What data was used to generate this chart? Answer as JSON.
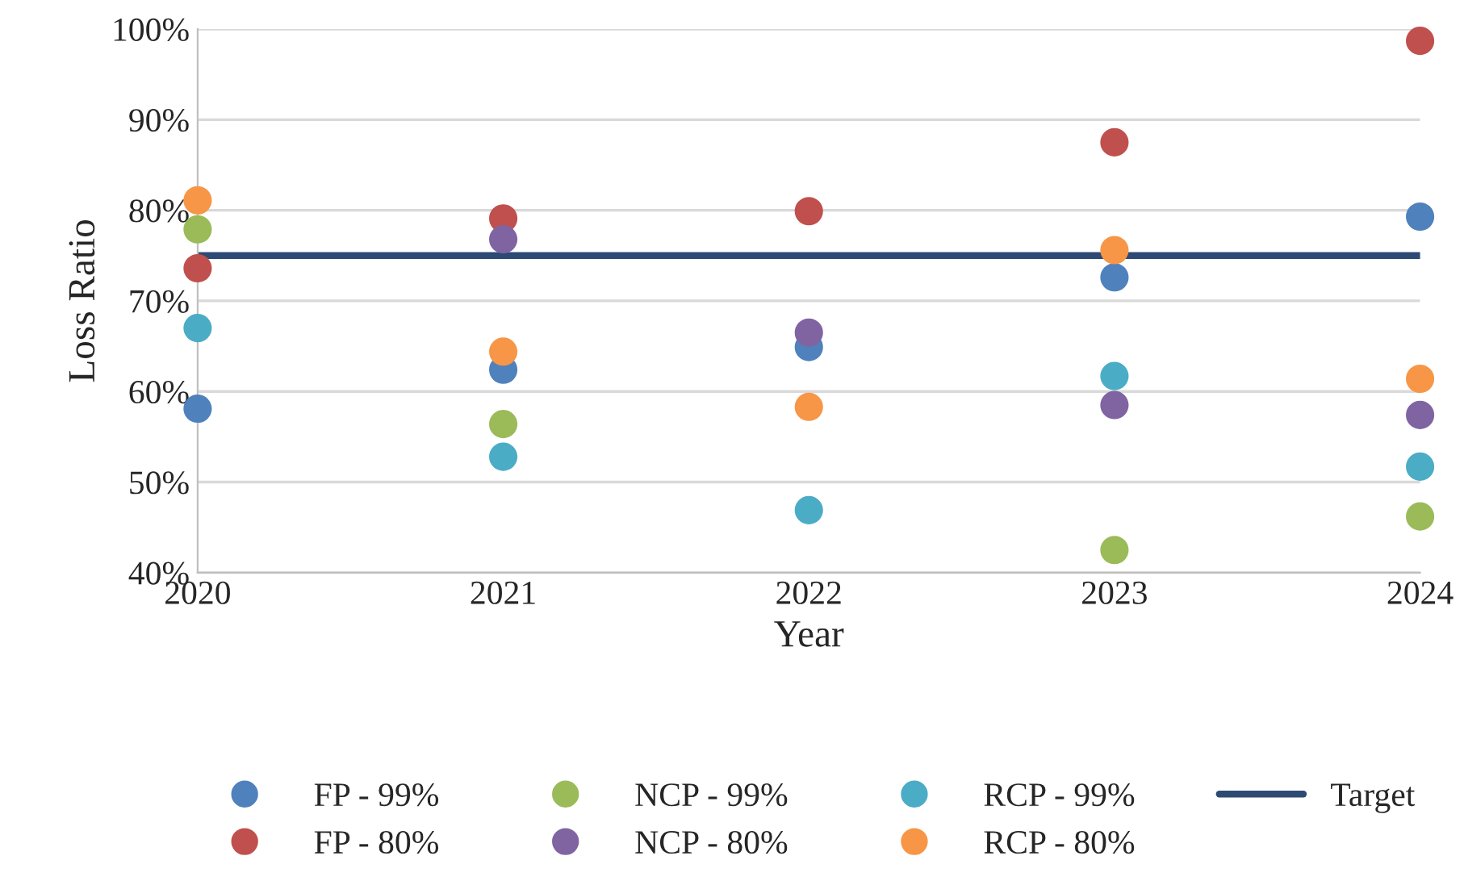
{
  "chart_data": {
    "type": "scatter",
    "xlabel": "Year",
    "ylabel": "Loss Ratio",
    "x": [
      2020,
      2021,
      2022,
      2023,
      2024
    ],
    "series": [
      {
        "name": "FP - 99%",
        "color": "#4f81bd",
        "values": [
          58.1,
          62.4,
          64.9,
          72.6,
          79.3
        ]
      },
      {
        "name": "FP - 80%",
        "color": "#c0504d",
        "values": [
          73.6,
          79.1,
          79.9,
          87.5,
          98.7
        ]
      },
      {
        "name": "NCP - 99%",
        "color": "#9bbb59",
        "values": [
          77.9,
          56.4,
          null,
          42.5,
          46.2
        ]
      },
      {
        "name": "NCP - 80%",
        "color": "#8064a2",
        "values": [
          null,
          76.8,
          66.5,
          58.5,
          57.4
        ]
      },
      {
        "name": "RCP - 99%",
        "color": "#4bacc6",
        "values": [
          67.0,
          52.8,
          46.9,
          61.7,
          51.7
        ]
      },
      {
        "name": "RCP - 80%",
        "color": "#f79646",
        "values": [
          81.1,
          64.4,
          58.3,
          75.6,
          61.4
        ]
      }
    ],
    "ref_lines": [
      {
        "axis": "y",
        "value": 75,
        "label": "Target",
        "color": "#2c4a74",
        "line_style": "solid"
      }
    ],
    "xlim": [
      2020,
      2024
    ],
    "xticks": [
      2020,
      2021,
      2022,
      2023,
      2024
    ],
    "ylim": [
      40,
      100
    ],
    "yticks": [
      {
        "value": 40,
        "label": "40%"
      },
      {
        "value": 50,
        "label": "50%"
      },
      {
        "value": 60,
        "label": "60%"
      },
      {
        "value": 70,
        "label": "70%"
      },
      {
        "value": 80,
        "label": "80%"
      },
      {
        "value": 90,
        "label": "90%"
      },
      {
        "value": 100,
        "label": "100%"
      }
    ],
    "grid": "y",
    "legend": "bottom",
    "marker": "circle"
  }
}
